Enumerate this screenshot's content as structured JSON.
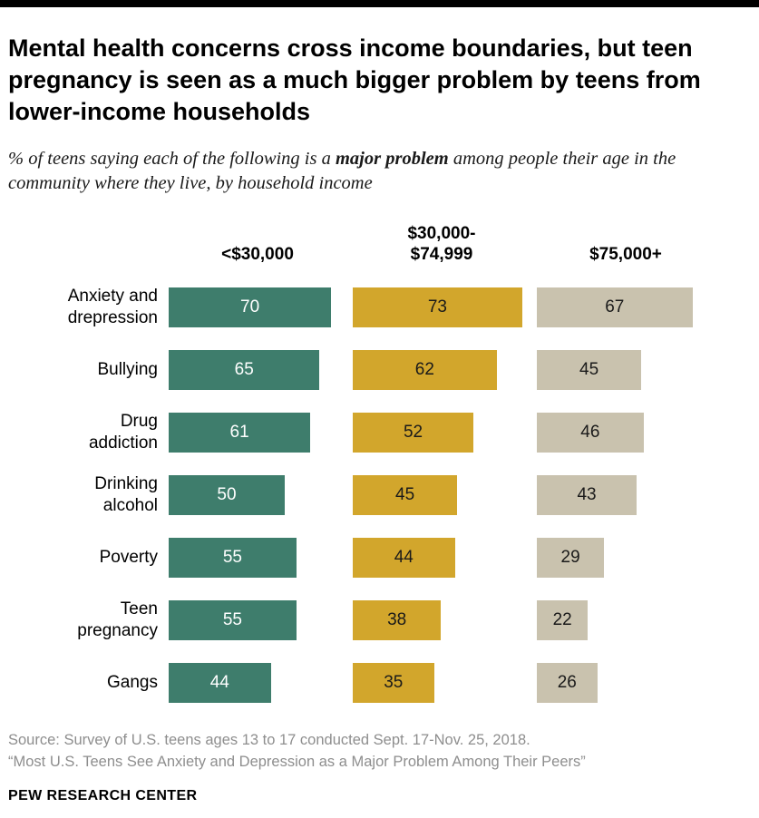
{
  "title": "Mental health concerns cross income boundaries, but teen pregnancy is seen as a much bigger problem by teens from lower-income households",
  "subtitle": {
    "prefix": "% of teens saying each of the following is a ",
    "bold": "major problem",
    "suffix": " among people their age in the community where they live, by household income"
  },
  "chart_data": {
    "type": "bar",
    "orientation": "horizontal",
    "categories": [
      "Anxiety and\ndrepression",
      "Bullying",
      "Drug\naddiction",
      "Drinking\nalcohol",
      "Poverty",
      "Teen\npregnancy",
      "Gangs"
    ],
    "series": [
      {
        "name": "<$30,000",
        "label": "<$30,000",
        "color": "#3e7d6c",
        "text_color": "#ffffff",
        "values": [
          70,
          65,
          61,
          50,
          55,
          55,
          44
        ]
      },
      {
        "name": "$30,000-$74,999",
        "label": "$30,000-\n$74,999",
        "color": "#d2a62c",
        "text_color": "#1a1a1a",
        "values": [
          73,
          62,
          52,
          45,
          44,
          38,
          35
        ]
      },
      {
        "name": "$75,000+",
        "label": "$75,000+",
        "color": "#c9c2ae",
        "text_color": "#1a1a1a",
        "values": [
          67,
          45,
          46,
          43,
          29,
          22,
          26
        ]
      }
    ],
    "xlim": [
      0,
      75
    ],
    "value_labels_shown": true,
    "legend_position": "column-headers",
    "grid": false
  },
  "source_line1": "Source: Survey of U.S. teens ages 13 to 17 conducted Sept. 17-Nov. 25, 2018.",
  "source_line2": "“Most U.S. Teens See Anxiety and Depression as a Major Problem Among Their Peers”",
  "footer": "PEW RESEARCH CENTER"
}
